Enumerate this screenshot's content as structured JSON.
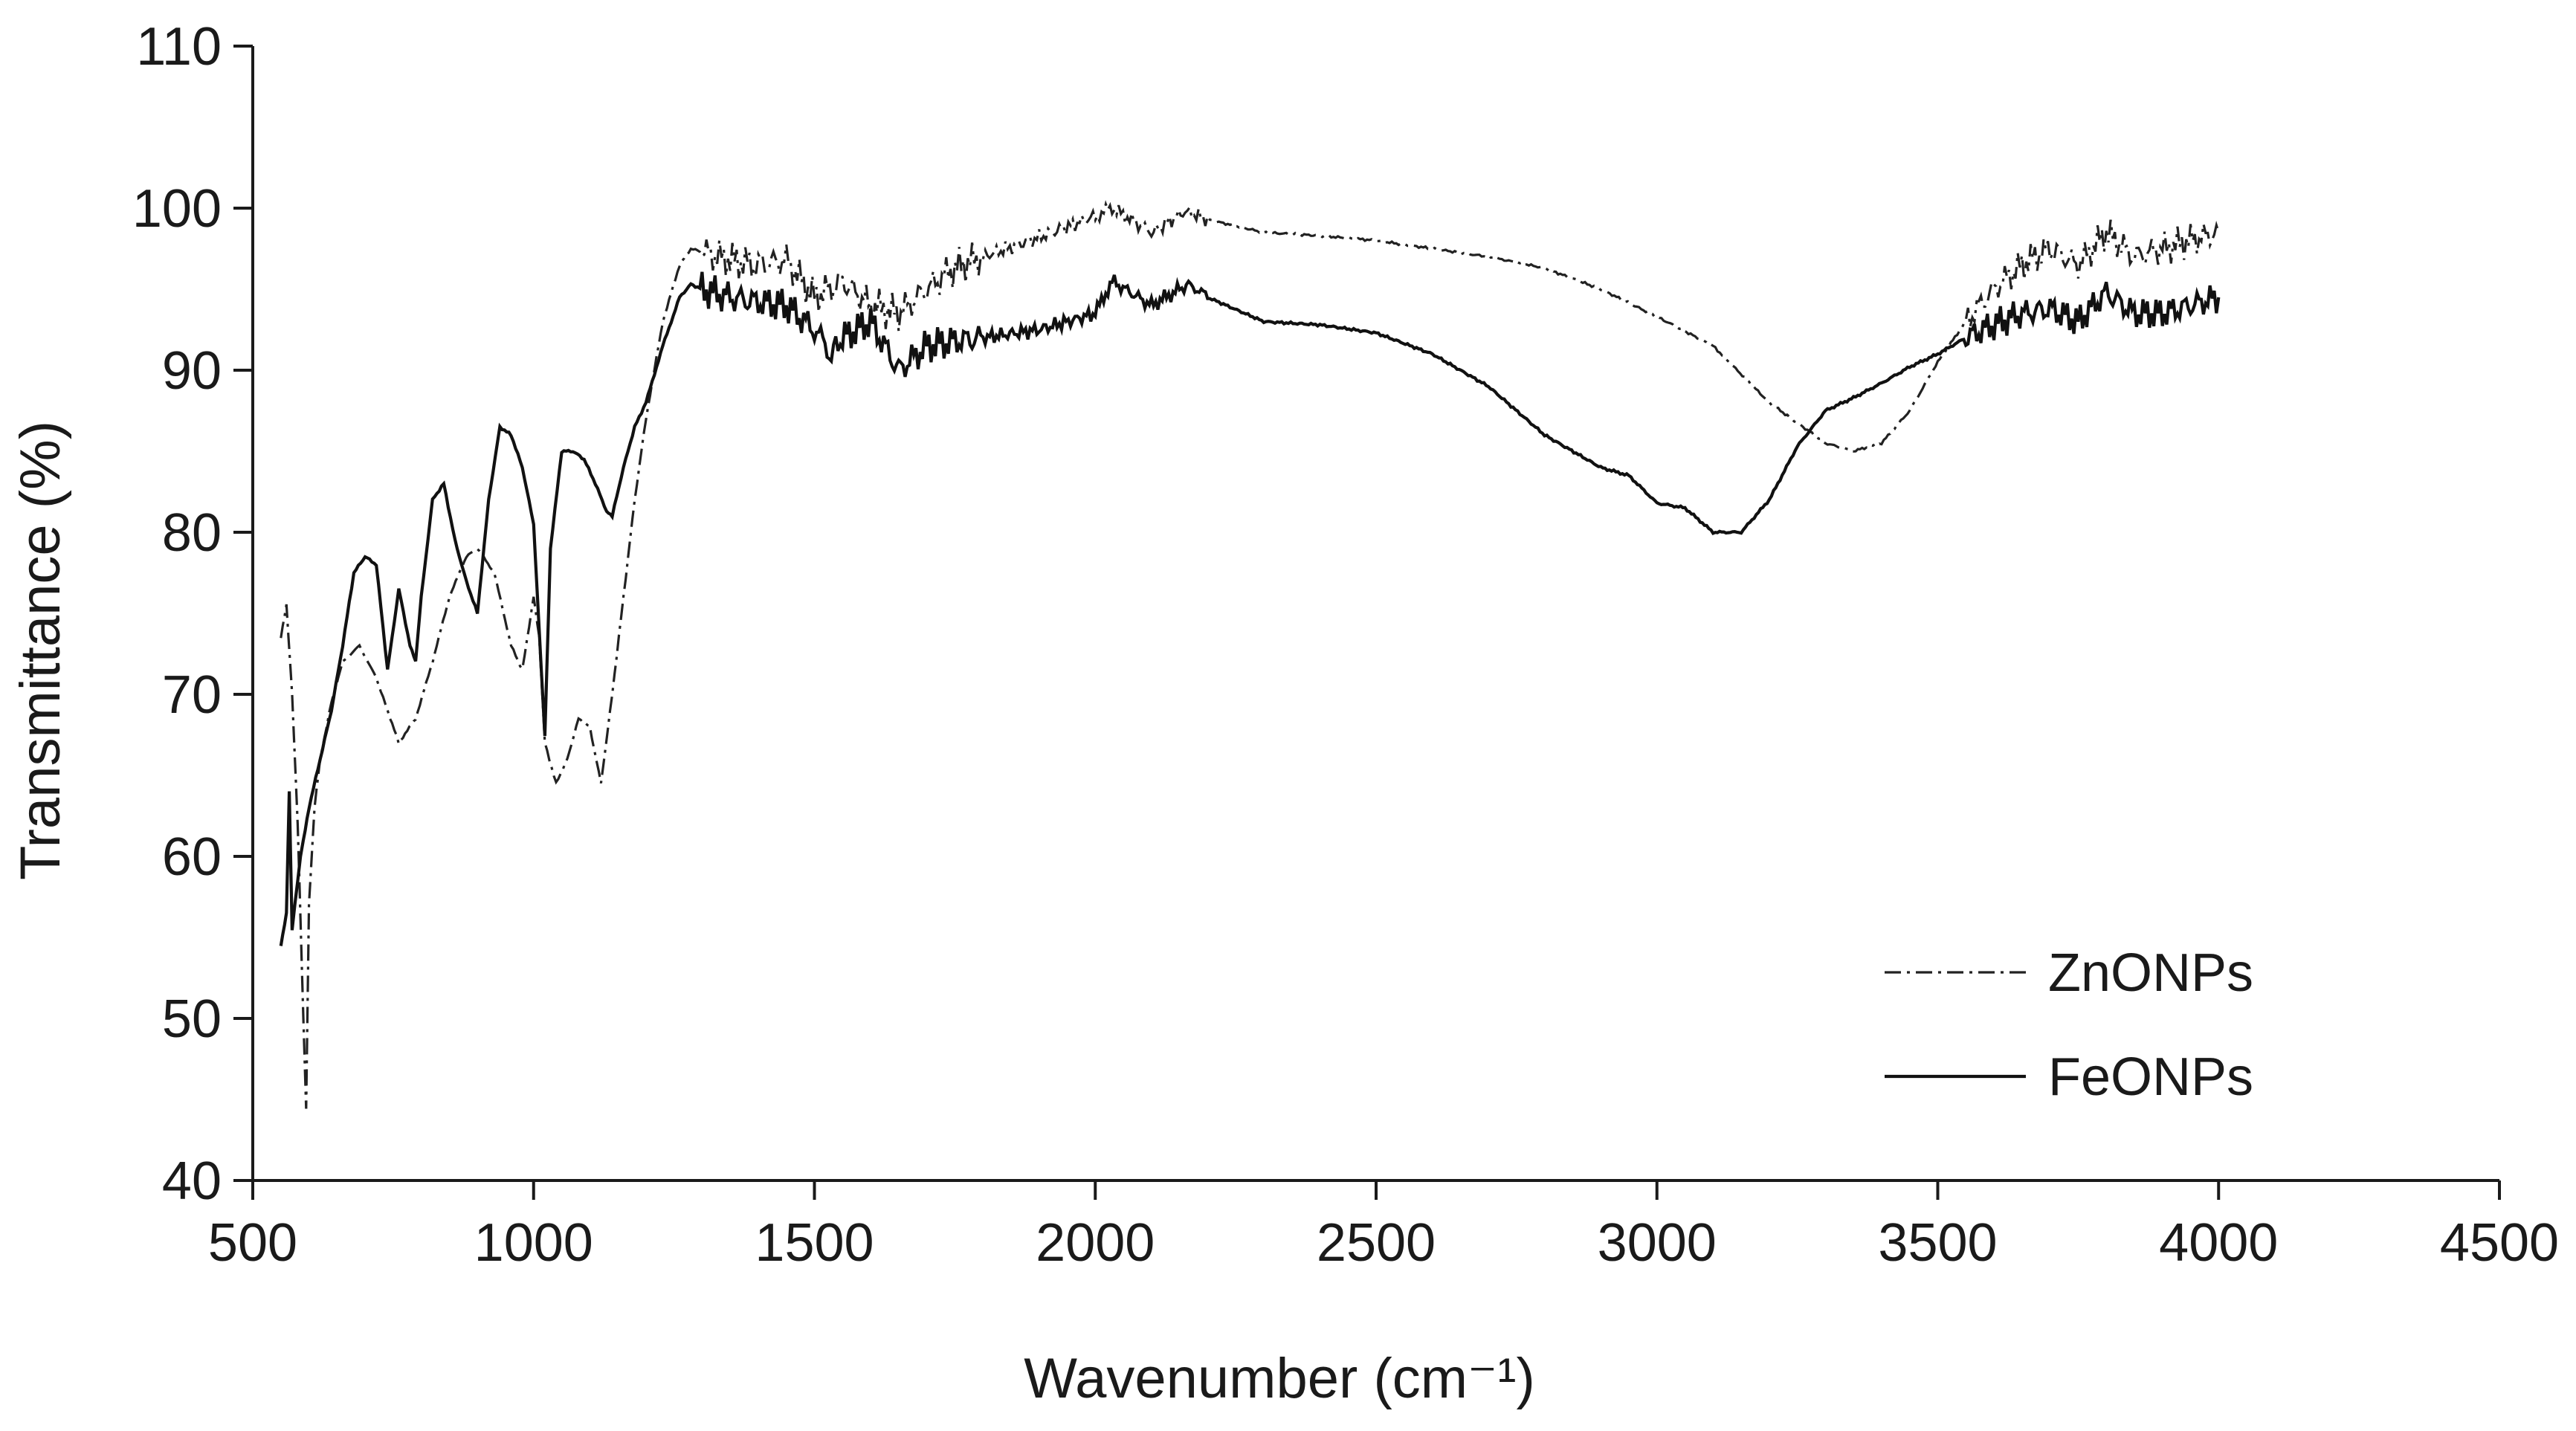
{
  "chart_data": {
    "type": "line",
    "title": "",
    "xlabel": "Wavenumber (cm⁻¹)",
    "ylabel": "Transmittance (%)",
    "xlim": [
      500,
      4500
    ],
    "ylim": [
      40,
      110
    ],
    "xticks": [
      "500",
      "1000",
      "1500",
      "2000",
      "2500",
      "3000",
      "3500",
      "4000",
      "4500"
    ],
    "yticks": [
      "40",
      "50",
      "60",
      "70",
      "80",
      "90",
      "100",
      "110"
    ],
    "grid": false,
    "legend": "bottom-right",
    "series": [
      {
        "name": "ZnONPs",
        "style": "dash-dot",
        "color": "#222222",
        "x": [
          550,
          560,
          570,
          580,
          590,
          595,
          600,
          610,
          620,
          640,
          660,
          690,
          720,
          760,
          790,
          820,
          850,
          880,
          900,
          930,
          960,
          980,
          1000,
          1010,
          1020,
          1040,
          1060,
          1080,
          1100,
          1120,
          1140,
          1160,
          1180,
          1200,
          1230,
          1260,
          1280,
          1300,
          1350,
          1400,
          1450,
          1500,
          1550,
          1600,
          1650,
          1700,
          1750,
          1800,
          1900,
          2000,
          2030,
          2100,
          2160,
          2200,
          2300,
          2400,
          2500,
          2600,
          2700,
          2800,
          2900,
          3000,
          3100,
          3200,
          3300,
          3350,
          3400,
          3450,
          3500,
          3550,
          3600,
          3650,
          3700,
          3750,
          3800,
          3850,
          3900,
          3950,
          4000
        ],
        "values": [
          73.5,
          75.5,
          70,
          62,
          50,
          44.5,
          57,
          63,
          66,
          69.5,
          72,
          73,
          71,
          67,
          68.5,
          72,
          76,
          78.5,
          79,
          77.5,
          73,
          71.5,
          76,
          73.5,
          67,
          64.5,
          66,
          68.5,
          68,
          64.5,
          70,
          76,
          82,
          87,
          93,
          96.5,
          97.5,
          97.3,
          96.8,
          96.5,
          96.8,
          94.5,
          95.5,
          94,
          93.5,
          95,
          96.3,
          97,
          98.2,
          99.5,
          100,
          98.5,
          99.8,
          99.3,
          98.5,
          98.3,
          98,
          97.5,
          97,
          96.3,
          95,
          93.3,
          91.5,
          88,
          85.5,
          85,
          85.5,
          87.5,
          90.5,
          93,
          95,
          96.5,
          97.5,
          96.5,
          98.5,
          97,
          97.5,
          98,
          98.5
        ]
      },
      {
        "name": "FeONPs",
        "style": "solid",
        "color": "#111111",
        "x": [
          550,
          560,
          565,
          570,
          575,
          580,
          585,
          590,
          600,
          620,
          640,
          660,
          680,
          700,
          720,
          740,
          760,
          780,
          790,
          800,
          820,
          840,
          860,
          880,
          900,
          920,
          940,
          960,
          980,
          1000,
          1010,
          1020,
          1030,
          1050,
          1070,
          1090,
          1110,
          1130,
          1140,
          1160,
          1180,
          1200,
          1230,
          1260,
          1280,
          1300,
          1350,
          1400,
          1450,
          1500,
          1530,
          1550,
          1600,
          1650,
          1700,
          1750,
          1800,
          1900,
          2000,
          2030,
          2100,
          2150,
          2170,
          2200,
          2300,
          2400,
          2500,
          2600,
          2700,
          2800,
          2900,
          2950,
          3000,
          3050,
          3100,
          3150,
          3200,
          3250,
          3300,
          3350,
          3400,
          3450,
          3500,
          3550,
          3600,
          3650,
          3700,
          3750,
          3800,
          3850,
          3900,
          3950,
          4000
        ],
        "values": [
          54.5,
          56.5,
          64,
          55.5,
          57,
          58.5,
          60,
          61,
          63,
          66,
          69,
          73,
          77.5,
          78.5,
          78,
          71.5,
          76.5,
          73,
          72,
          76,
          82,
          83,
          79.5,
          77,
          75,
          82,
          86.5,
          86,
          84,
          80.5,
          74,
          67.5,
          79,
          85,
          85,
          84.5,
          83,
          81.3,
          81,
          84,
          86.5,
          88,
          91.5,
          94.5,
          95.3,
          95,
          94.5,
          94.2,
          94,
          92.5,
          91,
          92,
          93,
          90,
          91.5,
          91.8,
          92,
          92.5,
          93.5,
          95.5,
          94,
          95,
          95.3,
          94.5,
          93,
          92.8,
          92.3,
          91,
          89,
          86,
          84,
          83.5,
          81.8,
          81.5,
          80,
          80,
          82,
          85.3,
          87.5,
          88.3,
          89.2,
          90.2,
          91,
          92,
          92.8,
          93.5,
          93.8,
          93,
          94.8,
          93.5,
          93.5,
          94,
          94.5
        ]
      }
    ]
  }
}
